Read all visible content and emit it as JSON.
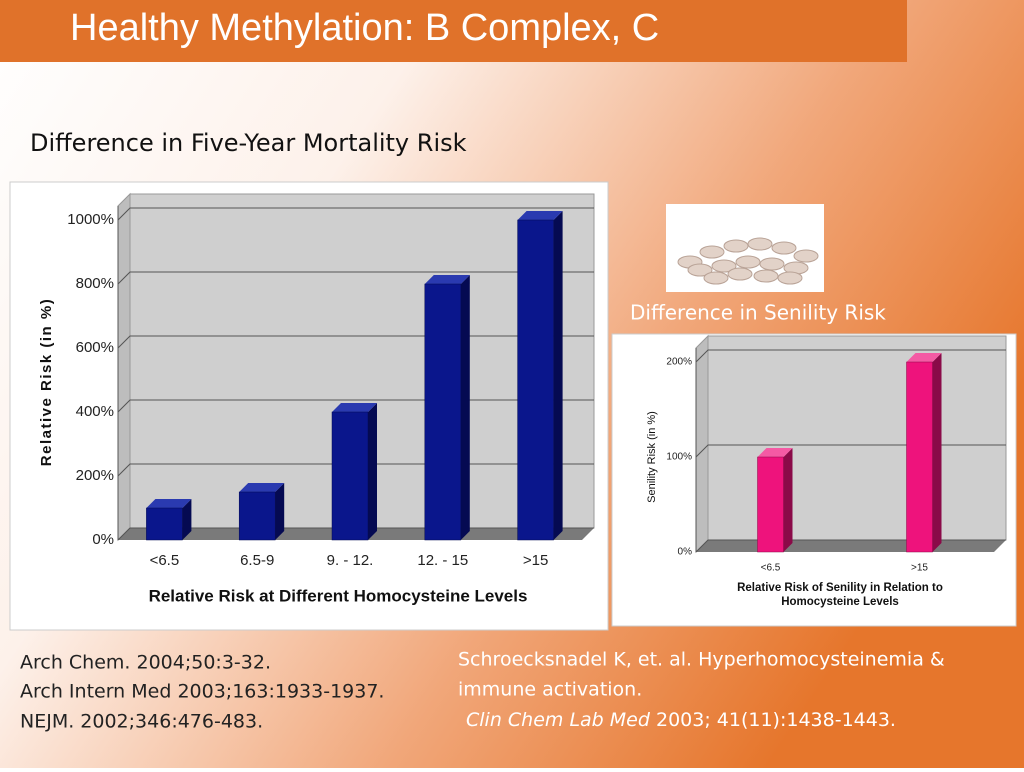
{
  "slide": {
    "title": "Healthy Methylation: B Complex, C",
    "references_left": [
      "Arch Chem. 2004;50:3-32.",
      "Arch Intern Med 2003;163:1933-1937.",
      "NEJM. 2002;346:476-483."
    ],
    "references_right": [
      "Schroecksnadel K, et. al. Hyperhomocysteinemia &",
      "immune activation."
    ],
    "citation_italic": "Clin Chem Lab Med",
    "citation_rest": "2003; 41(11):1438-1443."
  },
  "chart_data": [
    {
      "type": "bar",
      "title": "Difference in Five-Year Mortality Risk",
      "x_label": "Relative Risk at Different Homocysteine Levels",
      "y_label": "Relative Risk (in %)",
      "categories": [
        "<6.5",
        "6.5-9",
        "9. - 12.",
        "12. - 15",
        ">15"
      ],
      "values": [
        100,
        150,
        400,
        800,
        1000
      ],
      "color": "#0a168c",
      "ylim": [
        0,
        1000
      ],
      "yticks": [
        {
          "value": 0,
          "label": "0%"
        },
        {
          "value": 200,
          "label": "200%"
        },
        {
          "value": 400,
          "label": "400%"
        },
        {
          "value": 600,
          "label": "600%"
        },
        {
          "value": 800,
          "label": "800%"
        },
        {
          "value": 1000,
          "label": "1000%"
        }
      ],
      "grid": true
    },
    {
      "type": "bar",
      "title": "Difference in Senility Risk",
      "x_label": "Relative Risk of Senility in Relation to Homocysteine Levels",
      "y_label": "Senility Risk (in %)",
      "categories": [
        "<6.5",
        ">15"
      ],
      "values": [
        100,
        200
      ],
      "color": "#ee137c",
      "ylim": [
        0,
        200
      ],
      "yticks": [
        {
          "value": 0,
          "label": "0%"
        },
        {
          "value": 100,
          "label": "100%"
        },
        {
          "value": 200,
          "label": "200%"
        }
      ],
      "grid": true
    }
  ]
}
